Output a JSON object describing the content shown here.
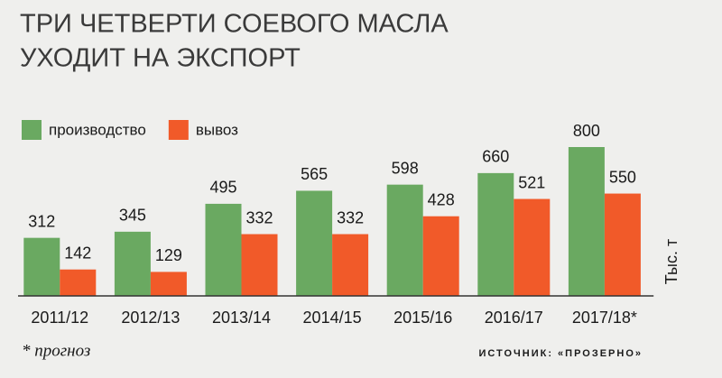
{
  "chart_data": {
    "type": "bar",
    "title": [
      "ТРИ ЧЕТВЕРТИ СОЕВОГО МАСЛА",
      "УХОДИТ НА ЭКСПОРТ"
    ],
    "y_label": "Тыс. т",
    "categories": [
      "2011/12",
      "2012/13",
      "2013/14",
      "2014/15",
      "2015/16",
      "2016/17",
      "2017/18*"
    ],
    "series": [
      {
        "name": "производство",
        "color": "#6aa961",
        "values": [
          312,
          345,
          495,
          565,
          598,
          660,
          800
        ]
      },
      {
        "name": "вывоз",
        "color": "#f15a29",
        "values": [
          142,
          129,
          332,
          332,
          428,
          521,
          550
        ]
      }
    ],
    "ylim": [
      0,
      800
    ],
    "footnote": "* прогноз",
    "source": "ИСТОЧНИК: «ПРОЗЕРНО»"
  }
}
